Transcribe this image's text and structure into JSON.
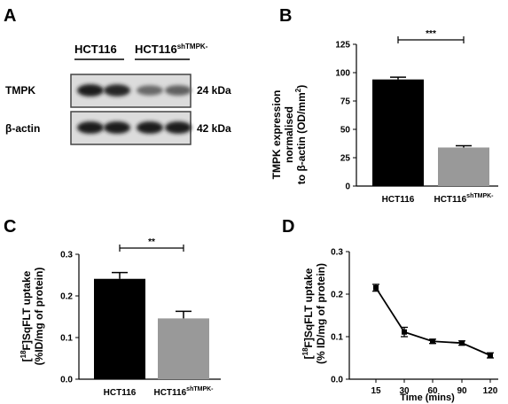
{
  "panels": {
    "A": {
      "letter": "A",
      "lanes": [
        {
          "label": "HCT116",
          "superscript": ""
        },
        {
          "label": "HCT116",
          "superscript": "shTMPK-"
        }
      ],
      "rows": [
        {
          "protein": "TMPK",
          "size": "24 kDa",
          "band_intensity": [
            0.95,
            0.9,
            0.55,
            0.6
          ]
        },
        {
          "protein": "β-actin",
          "size": "42 kDa",
          "band_intensity": [
            0.95,
            0.95,
            0.95,
            0.95
          ]
        }
      ]
    },
    "B": {
      "letter": "B"
    },
    "C": {
      "letter": "C"
    },
    "D": {
      "letter": "D"
    }
  },
  "chart_data": [
    {
      "panel": "B",
      "type": "bar",
      "categories": [
        "HCT116",
        "HCT116"
      ],
      "category_superscripts": [
        "",
        "shTMPK-"
      ],
      "values": [
        94,
        34
      ],
      "errors": [
        2,
        1.5
      ],
      "bar_colors": [
        "#000000",
        "#999999"
      ],
      "ylabel_lines": [
        "TMPK expression",
        "normalised",
        "to β-actin (OD/mm",
        "2",
        ")"
      ],
      "ylim": [
        0,
        125
      ],
      "yticks": [
        0,
        25,
        50,
        75,
        100,
        125
      ],
      "significance": "***"
    },
    {
      "panel": "C",
      "type": "bar",
      "categories": [
        "HCT116",
        "HCT116"
      ],
      "category_superscripts": [
        "",
        "shTMPK-"
      ],
      "values": [
        0.241,
        0.146
      ],
      "errors": [
        0.015,
        0.017
      ],
      "bar_colors": [
        "#000000",
        "#999999"
      ],
      "ylabel_line1_pre": "[",
      "ylabel_line1_sup": "18",
      "ylabel_line1_post": "F]SqFLT uptake",
      "ylabel_line2": "(%ID/mg of protein)",
      "ylim": [
        0,
        0.3
      ],
      "yticks": [
        "0.0",
        "0.1",
        "0.2",
        "0.3"
      ],
      "significance": "**"
    },
    {
      "panel": "D",
      "type": "line",
      "x": [
        15,
        30,
        60,
        90,
        120
      ],
      "xticks": [
        "15",
        "30",
        "60",
        "90",
        "120"
      ],
      "values": [
        0.215,
        0.111,
        0.089,
        0.085,
        0.056
      ],
      "errors": [
        0.008,
        0.011,
        0.005,
        0.005,
        0.006
      ],
      "xlabel": "Time (mins)",
      "ylabel_line1_pre": "[",
      "ylabel_line1_sup": "18",
      "ylabel_line1_post": "F]SqFLT uptake",
      "ylabel_line2": "(% ID/mg of protein)",
      "ylim": [
        0,
        0.3
      ],
      "yticks": [
        "0.0",
        "0.1",
        "0.2",
        "0.3"
      ]
    }
  ]
}
